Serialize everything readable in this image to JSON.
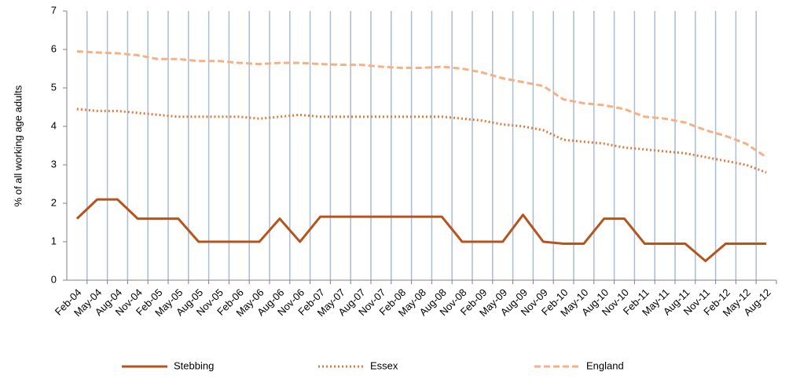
{
  "chart_data": {
    "type": "line",
    "y_label": "% of all working age adults",
    "categories": [
      "Feb-04",
      "May-04",
      "Aug-04",
      "Nov-04",
      "Feb-05",
      "May-05",
      "Aug-05",
      "Nov-05",
      "Feb-06",
      "May-06",
      "Aug-06",
      "Nov-06",
      "Feb-07",
      "May-07",
      "Aug-07",
      "Nov-07",
      "Feb-08",
      "May-08",
      "Aug-08",
      "Nov-08",
      "Feb-09",
      "May-09",
      "Aug-09",
      "Nov-09",
      "Feb-10",
      "May-10",
      "Aug-10",
      "Nov-10",
      "Feb-11",
      "May-11",
      "Aug-11",
      "Nov-11",
      "Feb-12",
      "May-12",
      "Aug-12"
    ],
    "series": [
      {
        "name": "Stebbing",
        "color": "#b5541c",
        "style": "solid",
        "values": [
          1.6,
          2.1,
          2.1,
          1.6,
          1.6,
          1.6,
          1.0,
          1.0,
          1.0,
          1.0,
          1.6,
          1.0,
          1.65,
          1.65,
          1.65,
          1.65,
          1.65,
          1.65,
          1.65,
          1.0,
          1.0,
          1.0,
          1.7,
          1.0,
          0.95,
          0.95,
          1.6,
          1.6,
          0.95,
          0.95,
          0.95,
          0.5,
          0.95,
          0.95,
          0.95
        ]
      },
      {
        "name": "Essex",
        "color": "#e07b39",
        "style": "dotted",
        "values": [
          4.45,
          4.4,
          4.4,
          4.35,
          4.3,
          4.25,
          4.25,
          4.25,
          4.25,
          4.2,
          4.25,
          4.3,
          4.25,
          4.25,
          4.25,
          4.25,
          4.25,
          4.25,
          4.25,
          4.2,
          4.15,
          4.05,
          4.0,
          3.9,
          3.65,
          3.6,
          3.55,
          3.45,
          3.4,
          3.35,
          3.3,
          3.2,
          3.1,
          3.0,
          2.8
        ]
      },
      {
        "name": "England",
        "color": "#f5b183",
        "style": "dashed",
        "values": [
          5.95,
          5.92,
          5.9,
          5.85,
          5.75,
          5.75,
          5.7,
          5.7,
          5.65,
          5.62,
          5.65,
          5.65,
          5.62,
          5.6,
          5.6,
          5.55,
          5.52,
          5.52,
          5.55,
          5.5,
          5.4,
          5.25,
          5.15,
          5.05,
          4.7,
          4.6,
          4.55,
          4.45,
          4.25,
          4.2,
          4.1,
          3.9,
          3.75,
          3.55,
          3.2
        ]
      }
    ],
    "ylim": [
      0,
      7
    ],
    "yticks": [
      0,
      1,
      2,
      3,
      4,
      5,
      6,
      7
    ],
    "xgrid": true,
    "grid_color": "#a9bcd9",
    "legend": "bottom"
  }
}
